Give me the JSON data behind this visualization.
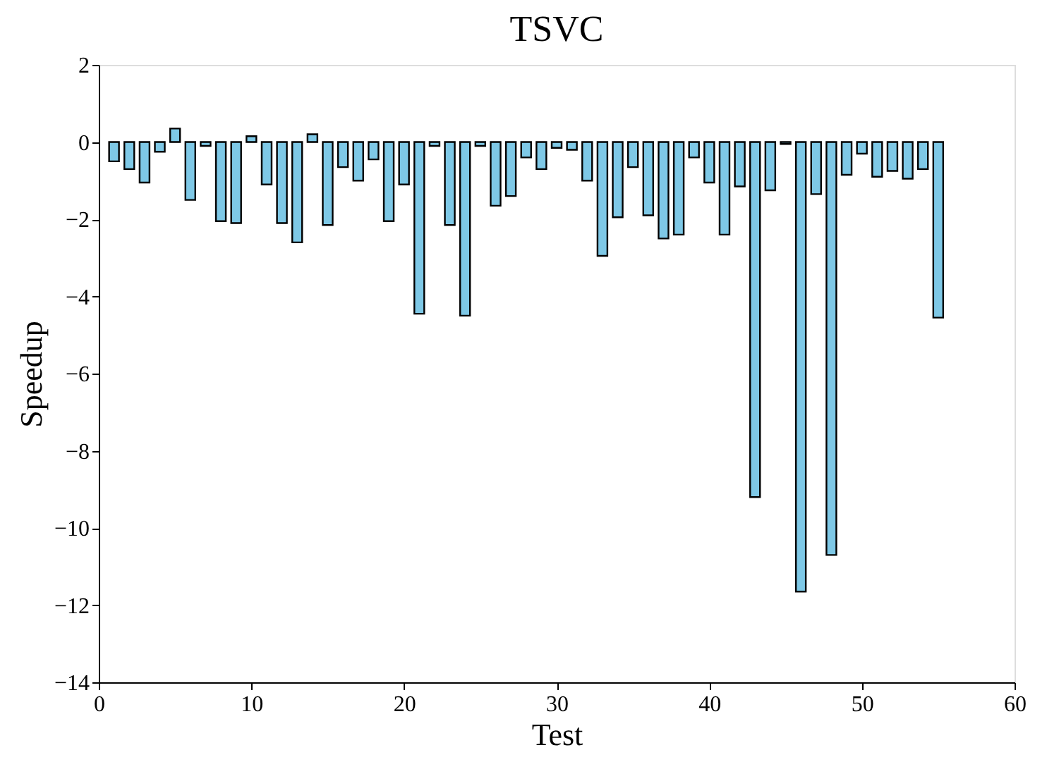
{
  "chart_data": {
    "type": "bar",
    "title": "TSVC",
    "xlabel": "Test",
    "ylabel": "Speedup",
    "x": [
      1,
      2,
      3,
      4,
      5,
      6,
      7,
      8,
      9,
      10,
      11,
      12,
      13,
      14,
      15,
      16,
      17,
      18,
      19,
      20,
      21,
      22,
      23,
      24,
      25,
      26,
      27,
      28,
      29,
      30,
      31,
      32,
      33,
      34,
      35,
      36,
      37,
      38,
      39,
      40,
      41,
      42,
      43,
      44,
      45,
      46,
      47,
      48,
      49,
      50,
      51,
      52,
      53,
      54,
      55
    ],
    "values": [
      -0.5,
      -0.7,
      -1.05,
      -0.25,
      0.35,
      -1.5,
      -0.1,
      -2.05,
      -2.1,
      0.15,
      -1.1,
      -2.1,
      -2.6,
      0.2,
      -2.15,
      -0.65,
      -1.0,
      -0.45,
      -2.05,
      -1.1,
      -4.45,
      -0.1,
      -2.15,
      -4.5,
      -0.1,
      -1.65,
      -1.4,
      -0.4,
      -0.7,
      -0.15,
      -0.2,
      -1.0,
      -2.95,
      -1.95,
      -0.65,
      -1.9,
      -2.5,
      -2.4,
      -0.4,
      -1.05,
      -2.4,
      -1.15,
      -9.2,
      -1.25,
      -0.05,
      -11.65,
      -1.35,
      -10.7,
      -0.85,
      -0.3,
      -0.9,
      -0.75,
      -0.95,
      -0.7,
      -4.55
    ],
    "color": "#7ec8e6",
    "xlim": [
      0,
      60
    ],
    "xticks": [
      0,
      10,
      20,
      30,
      40,
      50,
      60
    ],
    "ylim": [
      -14,
      2
    ],
    "yticks": [
      -14,
      -12,
      -10,
      -8,
      -6,
      -4,
      -2,
      0,
      2
    ],
    "grid": false
  }
}
